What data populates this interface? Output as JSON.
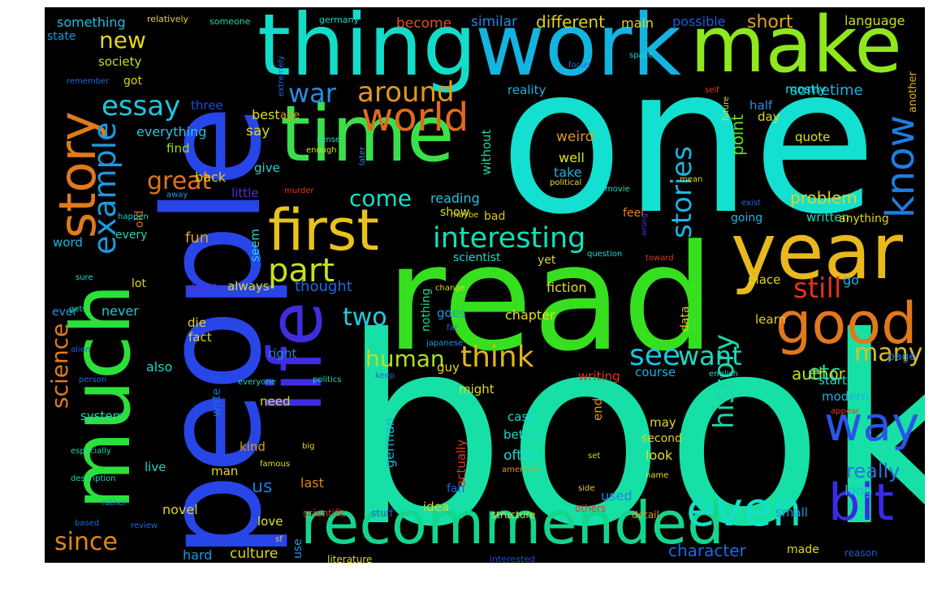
{
  "words": [
    {
      "text": "book",
      "color": "#16e0a6"
    },
    {
      "text": "one",
      "color": "#13e0d0"
    },
    {
      "text": "read",
      "color": "#36e01e"
    },
    {
      "text": "people",
      "color": "#2845e8"
    },
    {
      "text": "thing",
      "color": "#13dcc8"
    },
    {
      "text": "work",
      "color": "#14b4e0"
    },
    {
      "text": "make",
      "color": "#8fe81d"
    },
    {
      "text": "much",
      "color": "#2be03a"
    },
    {
      "text": "life",
      "color": "#3f2de0"
    },
    {
      "text": "time",
      "color": "#3ae04a"
    },
    {
      "text": "year",
      "color": "#e8b81d"
    },
    {
      "text": "first",
      "color": "#e8c21d"
    },
    {
      "text": "recommended",
      "color": "#13d68d"
    },
    {
      "text": "good",
      "color": "#e0781c"
    },
    {
      "text": "story",
      "color": "#e07a1c"
    },
    {
      "text": "even",
      "color": "#13e0c4"
    },
    {
      "text": "bit",
      "color": "#3a2ae8"
    },
    {
      "text": "way",
      "color": "#2a55e8"
    },
    {
      "text": "know",
      "color": "#1d7ee0"
    },
    {
      "text": "world",
      "color": "#e06a1c"
    },
    {
      "text": "part",
      "color": "#c8e01c"
    },
    {
      "text": "essay",
      "color": "#1cc8e0"
    },
    {
      "text": "example",
      "color": "#1c9ae0"
    },
    {
      "text": "interesting",
      "color": "#13e0b8"
    },
    {
      "text": "think",
      "color": "#e0b41c"
    },
    {
      "text": "stories",
      "color": "#1cb4e0"
    },
    {
      "text": "history",
      "color": "#1cd6a8"
    },
    {
      "text": "see",
      "color": "#1cc4e0"
    },
    {
      "text": "want",
      "color": "#1cd8c0"
    },
    {
      "text": "still",
      "color": "#e0321c"
    },
    {
      "text": "war",
      "color": "#2a8ae0"
    },
    {
      "text": "around",
      "color": "#e0981c"
    },
    {
      "text": "new",
      "color": "#e0d81c"
    },
    {
      "text": "great",
      "color": "#e0721c"
    },
    {
      "text": "come",
      "color": "#13e0cc"
    },
    {
      "text": "two",
      "color": "#1cd0e0"
    },
    {
      "text": "human",
      "color": "#b4e01c"
    },
    {
      "text": "many",
      "color": "#e0c01c"
    },
    {
      "text": "science",
      "color": "#e07c1c"
    },
    {
      "text": "since",
      "color": "#e0861c"
    },
    {
      "text": "etc",
      "color": "#1cd0b0"
    },
    {
      "text": "really",
      "color": "#1c78e0"
    },
    {
      "text": "author",
      "color": "#c0e01c"
    },
    {
      "text": "character",
      "color": "#1c6ae0"
    },
    {
      "text": "different",
      "color": "#e0d01c"
    },
    {
      "text": "problem",
      "color": "#e0d41c"
    },
    {
      "text": "sometime",
      "color": "#1cb0e0"
    },
    {
      "text": "point",
      "color": "#60e01c"
    },
    {
      "text": "short",
      "color": "#e0a41c"
    },
    {
      "text": "something",
      "color": "#1cc0e0"
    },
    {
      "text": "similar",
      "color": "#1c8ae0"
    },
    {
      "text": "become",
      "color": "#e0541c"
    },
    {
      "text": "main",
      "color": "#e0d81c"
    },
    {
      "text": "possible",
      "color": "#1c5ae0"
    },
    {
      "text": "language",
      "color": "#c4e01c"
    },
    {
      "text": "state",
      "color": "#1c9ae0"
    },
    {
      "text": "society",
      "color": "#c0e01c"
    },
    {
      "text": "got",
      "color": "#e0d01c"
    },
    {
      "text": "three",
      "color": "#1c4ae0"
    },
    {
      "text": "best",
      "color": "#e0d81c"
    },
    {
      "text": "age",
      "color": "#e0a01c"
    },
    {
      "text": "say",
      "color": "#e0d81c"
    },
    {
      "text": "everything",
      "color": "#1cc8e0"
    },
    {
      "text": "find",
      "color": "#a0e01c"
    },
    {
      "text": "give",
      "color": "#1cd8d0"
    },
    {
      "text": "little",
      "color": "#5a2ae0"
    },
    {
      "text": "reality",
      "color": "#1cb0e0"
    },
    {
      "text": "without",
      "color": "#1cd89a"
    },
    {
      "text": "weird",
      "color": "#e0981c"
    },
    {
      "text": "well",
      "color": "#e0e01c"
    },
    {
      "text": "take",
      "color": "#1cb4e0"
    },
    {
      "text": "back",
      "color": "#e0d01c"
    },
    {
      "text": "day",
      "color": "#e0d81c"
    },
    {
      "text": "half",
      "color": "#1c96e0"
    },
    {
      "text": "mostly",
      "color": "#13e0d0"
    },
    {
      "text": "quote",
      "color": "#e0e01c"
    },
    {
      "text": "written",
      "color": "#1cd8b4"
    },
    {
      "text": "another",
      "color": "#e0b41c"
    },
    {
      "text": "old",
      "color": "#e06a1c"
    },
    {
      "text": "fun",
      "color": "#e0a41c"
    },
    {
      "text": "reading",
      "color": "#1cc4d8"
    },
    {
      "text": "show",
      "color": "#e0e01c"
    },
    {
      "text": "feel",
      "color": "#e0861c"
    },
    {
      "text": "bad",
      "color": "#e0c41c"
    },
    {
      "text": "going",
      "color": "#1cb8e0"
    },
    {
      "text": "anything",
      "color": "#e0d41c"
    },
    {
      "text": "word",
      "color": "#1cb8e0"
    },
    {
      "text": "every",
      "color": "#1cd8b0"
    },
    {
      "text": "seem",
      "color": "#1cd8d0"
    },
    {
      "text": "scientist",
      "color": "#1cd8d0"
    },
    {
      "text": "yet",
      "color": "#e0d41c"
    },
    {
      "text": "lot",
      "color": "#e0d81c"
    },
    {
      "text": "death",
      "color": "#5a2ae0"
    },
    {
      "text": "always",
      "color": "#e0d81c"
    },
    {
      "text": "thought",
      "color": "#1c6ae0"
    },
    {
      "text": "fiction",
      "color": "#e0e01c"
    },
    {
      "text": "place",
      "color": "#e0d81c"
    },
    {
      "text": "go",
      "color": "#1cb4e0"
    },
    {
      "text": "ever",
      "color": "#1c96e0"
    },
    {
      "text": "never",
      "color": "#1cc8d8"
    },
    {
      "text": "goes",
      "color": "#1c9ae0"
    },
    {
      "text": "chapter",
      "color": "#e0e01c"
    },
    {
      "text": "learn",
      "color": "#e0d01c"
    },
    {
      "text": "die",
      "color": "#e0d41c"
    },
    {
      "text": "fact",
      "color": "#e0d81c"
    },
    {
      "text": "nothing",
      "color": "#1cd89a"
    },
    {
      "text": "data",
      "color": "#e0c81c"
    },
    {
      "text": "right",
      "color": "#1c8ae0"
    },
    {
      "text": "also",
      "color": "#1cd8c0"
    },
    {
      "text": "guy",
      "color": "#e0d81c"
    },
    {
      "text": "writing",
      "color": "#e0381c"
    },
    {
      "text": "course",
      "color": "#1cb0e0"
    },
    {
      "text": "page",
      "color": "#1c7ae0"
    },
    {
      "text": "might",
      "color": "#e0d81c"
    },
    {
      "text": "start",
      "color": "#1cd8d0"
    },
    {
      "text": "need",
      "color": "#e0d81c"
    },
    {
      "text": "modern",
      "color": "#1cb0e0"
    },
    {
      "text": "system",
      "color": "#1cd8b8"
    },
    {
      "text": "write",
      "color": "#1c6ae0"
    },
    {
      "text": "end",
      "color": "#e0981c"
    },
    {
      "text": "german",
      "color": "#1cb4d8"
    },
    {
      "text": "case",
      "color": "#1cd8d0"
    },
    {
      "text": "may",
      "color": "#e0d81c"
    },
    {
      "text": "kind",
      "color": "#e0981c"
    },
    {
      "text": "actually",
      "color": "#e0381c"
    },
    {
      "text": "better",
      "color": "#1cd8c8"
    },
    {
      "text": "second",
      "color": "#e0d81c"
    },
    {
      "text": "often",
      "color": "#1cd8d0"
    },
    {
      "text": "look",
      "color": "#e0e01c"
    },
    {
      "text": "live",
      "color": "#1cd8c0"
    },
    {
      "text": "man",
      "color": "#e0d81c"
    },
    {
      "text": "last",
      "color": "#e0861c"
    },
    {
      "text": "us",
      "color": "#1c78e0"
    },
    {
      "text": "fan",
      "color": "#1c6ae0"
    },
    {
      "text": "used",
      "color": "#1c8ae0"
    },
    {
      "text": "long",
      "color": "#1cb0e0"
    },
    {
      "text": "novel",
      "color": "#e0d81c"
    },
    {
      "text": "idea",
      "color": "#e0d81c"
    },
    {
      "text": "small",
      "color": "#1c9ae0"
    },
    {
      "text": "love",
      "color": "#e0e01c"
    },
    {
      "text": "scientific",
      "color": "#e0381c"
    },
    {
      "text": "stuff",
      "color": "#1c6ae0"
    },
    {
      "text": "structure",
      "color": "#e0d81c"
    },
    {
      "text": "others",
      "color": "#e0381c"
    },
    {
      "text": "detail",
      "color": "#e0981c"
    },
    {
      "text": "hard",
      "color": "#1c9ae0"
    },
    {
      "text": "culture",
      "color": "#e0d81c"
    },
    {
      "text": "use",
      "color": "#1c9ae0"
    },
    {
      "text": "literature",
      "color": "#e0d81c"
    },
    {
      "text": "made",
      "color": "#e0d81c"
    },
    {
      "text": "reason",
      "color": "#1c5ae0"
    },
    {
      "text": "interested",
      "color": "#1c4ae0"
    },
    {
      "text": "relatively",
      "color": "#e0d81c"
    },
    {
      "text": "someone",
      "color": "#1cd8b0"
    },
    {
      "text": "germany",
      "color": "#1cd8d0"
    },
    {
      "text": "extremely",
      "color": "#1c6ae0"
    },
    {
      "text": "remember",
      "color": "#1c6ae0"
    },
    {
      "text": "focus",
      "color": "#1c6ae0"
    },
    {
      "text": "space",
      "color": "#1cd8d0"
    },
    {
      "text": "self",
      "color": "#e0381c"
    },
    {
      "text": "future",
      "color": "#e0d81c"
    },
    {
      "text": "enough",
      "color": "#e0e01c"
    },
    {
      "text": "sense",
      "color": "#1cd8d0"
    },
    {
      "text": "later",
      "color": "#1c8ae0"
    },
    {
      "text": "murder",
      "color": "#e0381c"
    },
    {
      "text": "political",
      "color": "#e0e01c"
    },
    {
      "text": "movie",
      "color": "#1cd8d0"
    },
    {
      "text": "mean",
      "color": "#e0d81c"
    },
    {
      "text": "exist",
      "color": "#1c6ae0"
    },
    {
      "text": "away",
      "color": "#1c9ae0"
    },
    {
      "text": "happen",
      "color": "#1cd8b0"
    },
    {
      "text": "maybe",
      "color": "#e0d81c"
    },
    {
      "text": "wrong",
      "color": "#5a2ae0"
    },
    {
      "text": "question",
      "color": "#1cd8d0"
    },
    {
      "text": "toward",
      "color": "#e0381c"
    },
    {
      "text": "sure",
      "color": "#1cd8d0"
    },
    {
      "text": "change",
      "color": "#e0d81c"
    },
    {
      "text": "far",
      "color": "#1c6ae0"
    },
    {
      "text": "japanese",
      "color": "#1c9ae0"
    },
    {
      "text": "alien",
      "color": "#1c5ae0"
    },
    {
      "text": "gets",
      "color": "#1cd8b0"
    },
    {
      "text": "person",
      "color": "#1c6ae0"
    },
    {
      "text": "less",
      "color": "#1c5ae0"
    },
    {
      "text": "everyone",
      "color": "#1cd8d0"
    },
    {
      "text": "politics",
      "color": "#1cd8b0"
    },
    {
      "text": "keep",
      "color": "#1c6ae0"
    },
    {
      "text": "english",
      "color": "#1cd8d0"
    },
    {
      "text": "appear",
      "color": "#e0381c"
    },
    {
      "text": "especially",
      "color": "#1cd8b0"
    },
    {
      "text": "big",
      "color": "#e0d81c"
    },
    {
      "text": "description",
      "color": "#1cd8b0"
    },
    {
      "text": "famous",
      "color": "#e0e01c"
    },
    {
      "text": "rather",
      "color": "#1c9ae0"
    },
    {
      "text": "based",
      "color": "#1c6ae0"
    },
    {
      "text": "review",
      "color": "#1c6ae0"
    },
    {
      "text": "sf",
      "color": "#e0d81c"
    },
    {
      "text": "set",
      "color": "#e0d81c"
    },
    {
      "text": "american",
      "color": "#e0981c"
    },
    {
      "text": "name",
      "color": "#e0e01c"
    },
    {
      "text": "side",
      "color": "#e0d81c"
    }
  ]
}
